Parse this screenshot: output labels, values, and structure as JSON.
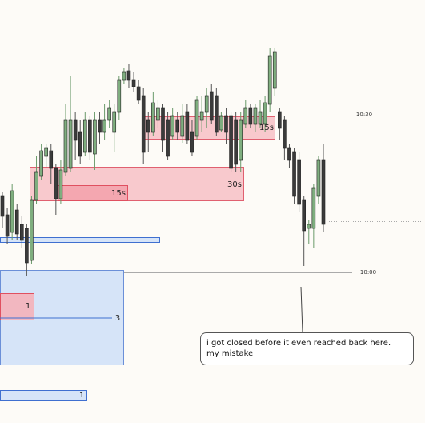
{
  "chart_data": {
    "type": "candlestick",
    "ylim": [
      0,
      528
    ],
    "up_color": "#7fae7f",
    "down_color": "#3b3b3b",
    "open": [
      283,
      260,
      238,
      266,
      248,
      243,
      203,
      278,
      308,
      333,
      340,
      318,
      280,
      313,
      318,
      378,
      363,
      338,
      378,
      336,
      378,
      363,
      378,
      363,
      388,
      428,
      440,
      428,
      420,
      408,
      378,
      363,
      378,
      393,
      378,
      358,
      378,
      358,
      388,
      363,
      358,
      378,
      388,
      413,
      408,
      366,
      383,
      383,
      378,
      328,
      373,
      393,
      373,
      373,
      373,
      398,
      418,
      388,
      378,
      343,
      338,
      328,
      278,
      243,
      243,
      283,
      328
    ],
    "high": [
      288,
      268,
      298,
      273,
      258,
      248,
      283,
      333,
      348,
      348,
      348,
      323,
      328,
      398,
      433,
      388,
      378,
      388,
      383,
      388,
      388,
      398,
      403,
      398,
      433,
      443,
      448,
      438,
      428,
      418,
      388,
      413,
      403,
      398,
      388,
      393,
      388,
      398,
      398,
      378,
      408,
      408,
      418,
      423,
      418,
      388,
      393,
      388,
      388,
      388,
      403,
      398,
      398,
      403,
      408,
      468,
      468,
      393,
      383,
      348,
      343,
      338,
      283,
      253,
      298,
      333,
      348
    ],
    "low": [
      243,
      223,
      228,
      228,
      218,
      183,
      198,
      273,
      303,
      318,
      298,
      260,
      273,
      308,
      313,
      328,
      323,
      333,
      328,
      316,
      348,
      353,
      368,
      338,
      378,
      423,
      418,
      413,
      398,
      323,
      338,
      358,
      368,
      338,
      328,
      353,
      353,
      350,
      348,
      333,
      353,
      363,
      368,
      373,
      358,
      363,
      348,
      313,
      313,
      313,
      368,
      368,
      363,
      368,
      363,
      388,
      408,
      353,
      328,
      318,
      273,
      263,
      196,
      223,
      218,
      273,
      238
    ],
    "close": [
      258,
      233,
      290,
      236,
      228,
      200,
      278,
      313,
      340,
      343,
      318,
      280,
      316,
      378,
      378,
      353,
      333,
      378,
      338,
      378,
      363,
      378,
      393,
      388,
      428,
      438,
      428,
      420,
      403,
      338,
      363,
      400,
      393,
      353,
      333,
      383,
      363,
      383,
      353,
      338,
      403,
      388,
      408,
      378,
      363,
      383,
      363,
      318,
      323,
      378,
      393,
      373,
      393,
      388,
      400,
      458,
      463,
      368,
      343,
      328,
      283,
      273,
      240,
      248,
      293,
      328,
      248
    ],
    "zone_labels": [
      "30s",
      "15s",
      "15s",
      "1",
      "3",
      "1"
    ],
    "level_labels": [
      "10:30",
      "10:00"
    ],
    "callout": [
      "i got closed before it even reached back here.",
      "my mistake"
    ]
  }
}
